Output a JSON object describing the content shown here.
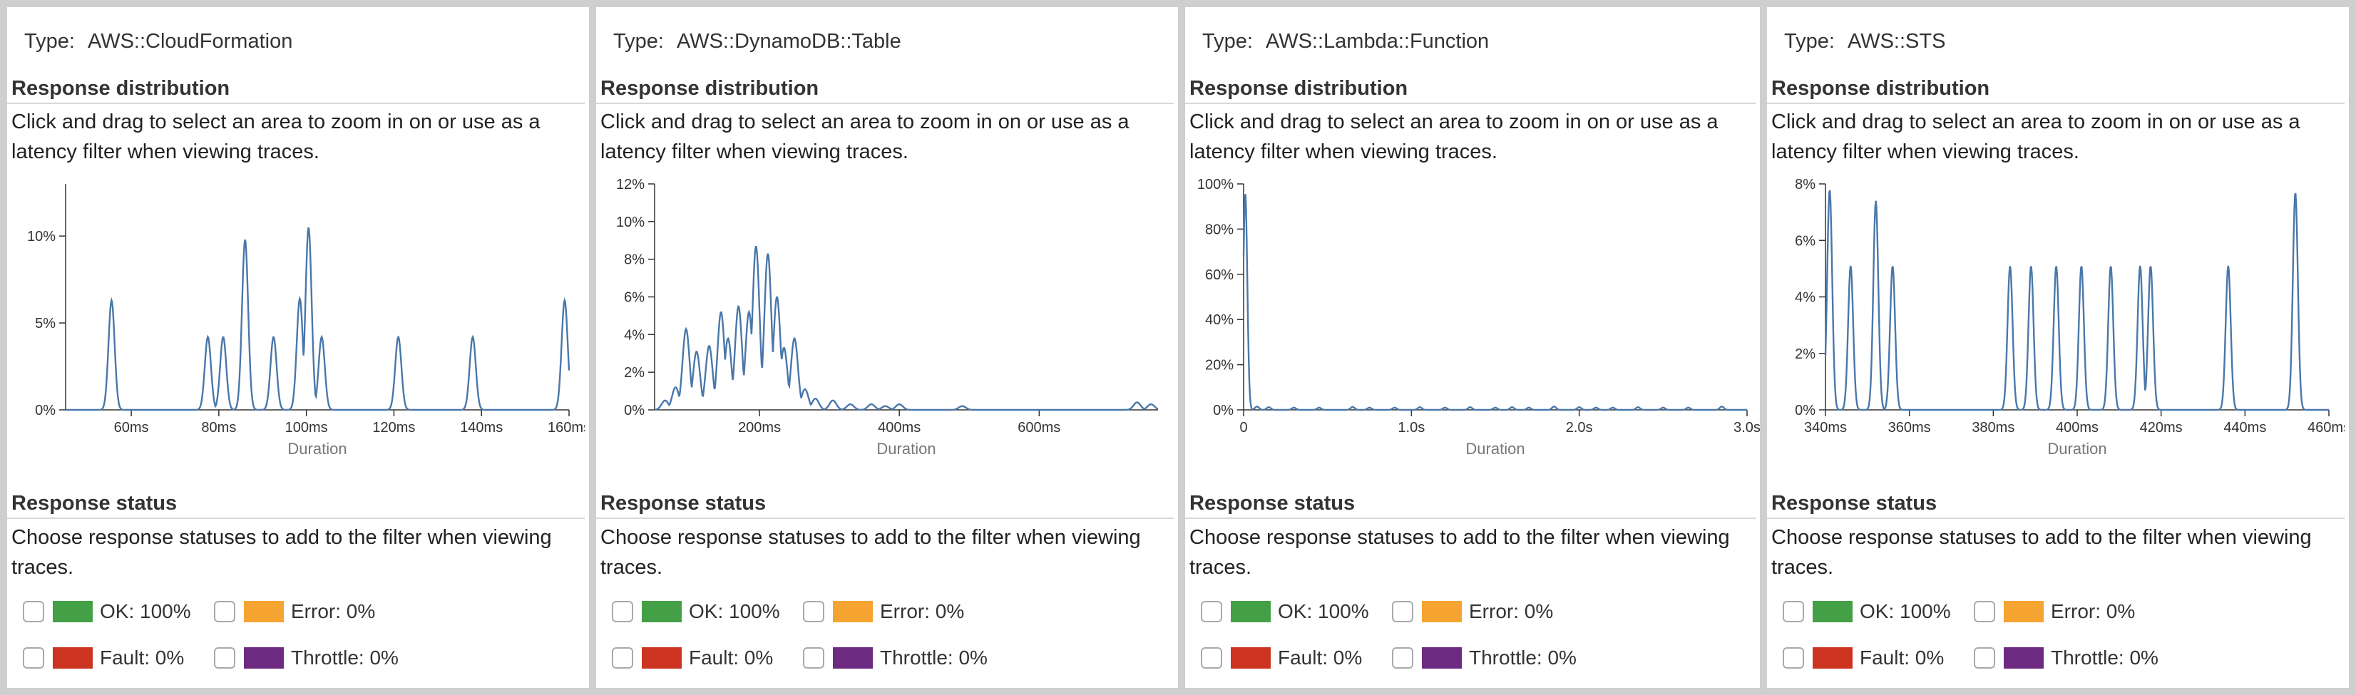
{
  "labels": {
    "type": "Type:",
    "response_distribution": "Response distribution",
    "distribution_help": "Click and drag to select an area to zoom in on or use as a latency filter when viewing traces.",
    "response_status": "Response status",
    "status_help": "Choose response statuses to add to the filter when viewing traces.",
    "duration": "Duration"
  },
  "status_colors": {
    "ok": "#43a047",
    "error": "#f5a431",
    "fault": "#cc3321",
    "throttle": "#6c2a80"
  },
  "line_color": "#4a77aa",
  "panels": [
    {
      "type_value": "AWS::CloudFormation",
      "statuses": {
        "ok": "OK: 100%",
        "error": "Error: 0%",
        "fault": "Fault: 0%",
        "throttle": "Throttle: 0%"
      },
      "chart_data": {
        "type": "line",
        "xlabel": "Duration",
        "x_unit": "ms",
        "xlim": [
          45,
          160
        ],
        "ylim": [
          0,
          13
        ],
        "x_ticks": [
          60,
          80,
          100,
          120,
          140,
          160
        ],
        "x_tick_labels": [
          "60ms",
          "80ms",
          "100ms",
          "120ms",
          "140ms",
          "160ms"
        ],
        "y_ticks": [
          0,
          5,
          10
        ],
        "y_tick_labels": [
          "0%",
          "5%",
          "10%"
        ],
        "peak_width": 0.7,
        "peaks": [
          [
            55.5,
            6.3
          ],
          [
            77.5,
            4.2
          ],
          [
            81,
            4.2
          ],
          [
            86,
            9.8
          ],
          [
            92.5,
            4.2
          ],
          [
            98.5,
            6.4
          ],
          [
            100.5,
            10.5
          ],
          [
            103.5,
            4.2
          ],
          [
            121,
            4.2
          ],
          [
            138,
            4.2
          ],
          [
            159,
            6.3
          ]
        ]
      }
    },
    {
      "type_value": "AWS::DynamoDB::Table",
      "statuses": {
        "ok": "OK: 100%",
        "error": "Error: 0%",
        "fault": "Fault: 0%",
        "throttle": "Throttle: 0%"
      },
      "chart_data": {
        "type": "line",
        "xlabel": "Duration",
        "x_unit": "ms",
        "xlim": [
          50,
          770
        ],
        "ylim": [
          0,
          12
        ],
        "x_ticks": [
          200,
          400,
          600
        ],
        "x_tick_labels": [
          "200ms",
          "400ms",
          "600ms"
        ],
        "y_ticks": [
          0,
          2,
          4,
          6,
          8,
          10,
          12
        ],
        "y_tick_labels": [
          "0%",
          "2%",
          "4%",
          "6%",
          "8%",
          "10%",
          "12%"
        ],
        "peak_width": 5,
        "peaks": [
          [
            65,
            0.5
          ],
          [
            80,
            1.2
          ],
          [
            95,
            4.3
          ],
          [
            110,
            3.1
          ],
          [
            128,
            3.4
          ],
          [
            145,
            5.2
          ],
          [
            155,
            3.8
          ],
          [
            170,
            5.5
          ],
          [
            185,
            5.2
          ],
          [
            195,
            8.7
          ],
          [
            212,
            8.3
          ],
          [
            225,
            6.0
          ],
          [
            235,
            3.3
          ],
          [
            250,
            3.8
          ],
          [
            265,
            1.1
          ],
          [
            280,
            0.6
          ],
          [
            305,
            0.5
          ],
          [
            330,
            0.3
          ],
          [
            360,
            0.3
          ],
          [
            380,
            0.2
          ],
          [
            400,
            0.3
          ],
          [
            490,
            0.2
          ],
          [
            740,
            0.4
          ],
          [
            760,
            0.3
          ]
        ]
      }
    },
    {
      "type_value": "AWS::Lambda::Function",
      "statuses": {
        "ok": "OK: 100%",
        "error": "Error: 0%",
        "fault": "Fault: 0%",
        "throttle": "Throttle: 0%"
      },
      "chart_data": {
        "type": "line",
        "xlabel": "Duration",
        "x_unit": "s",
        "xlim": [
          0,
          3.0
        ],
        "ylim": [
          0,
          100
        ],
        "x_ticks": [
          0,
          1.0,
          2.0,
          3.0
        ],
        "x_tick_labels": [
          "0",
          "1.0s",
          "2.0s",
          "3.0s"
        ],
        "y_ticks": [
          0,
          20,
          40,
          60,
          80,
          100
        ],
        "y_tick_labels": [
          "0%",
          "20%",
          "40%",
          "60%",
          "80%",
          "100%"
        ],
        "peak_width": 0.012,
        "peaks": [
          [
            0.01,
            96
          ],
          [
            0.08,
            1.5
          ],
          [
            0.15,
            1.2
          ],
          [
            0.3,
            1.0
          ],
          [
            0.45,
            1.0
          ],
          [
            0.65,
            1.3
          ],
          [
            0.75,
            1.0
          ],
          [
            0.9,
            1.0
          ],
          [
            1.05,
            1.2
          ],
          [
            1.2,
            1.0
          ],
          [
            1.35,
            1.2
          ],
          [
            1.5,
            1.0
          ],
          [
            1.6,
            1.2
          ],
          [
            1.7,
            1.0
          ],
          [
            1.85,
            1.5
          ],
          [
            2.0,
            1.2
          ],
          [
            2.1,
            1.0
          ],
          [
            2.2,
            1.0
          ],
          [
            2.35,
            1.2
          ],
          [
            2.5,
            1.0
          ],
          [
            2.65,
            1.0
          ],
          [
            2.85,
            1.5
          ]
        ]
      }
    },
    {
      "type_value": "AWS::STS",
      "statuses": {
        "ok": "OK: 100%",
        "error": "Error: 0%",
        "fault": "Fault: 0%",
        "throttle": "Throttle: 0%"
      },
      "chart_data": {
        "type": "line",
        "xlabel": "Duration",
        "x_unit": "ms",
        "xlim": [
          340,
          460
        ],
        "ylim": [
          0,
          8
        ],
        "x_ticks": [
          340,
          360,
          380,
          400,
          420,
          440,
          460
        ],
        "x_tick_labels": [
          "340ms",
          "360ms",
          "380ms",
          "400ms",
          "420ms",
          "440ms",
          "460ms"
        ],
        "y_ticks": [
          0,
          2,
          4,
          6,
          8
        ],
        "y_tick_labels": [
          "0%",
          "2%",
          "4%",
          "6%",
          "8%"
        ],
        "peak_width": 0.6,
        "peaks": [
          [
            341,
            7.8
          ],
          [
            346,
            5.1
          ],
          [
            352,
            7.4
          ],
          [
            356,
            5.1
          ],
          [
            384,
            5.1
          ],
          [
            389,
            5.1
          ],
          [
            395,
            5.1
          ],
          [
            401,
            5.1
          ],
          [
            408,
            5.1
          ],
          [
            415,
            5.1
          ],
          [
            417.5,
            5.1
          ],
          [
            436,
            5.1
          ],
          [
            452,
            7.7
          ]
        ]
      }
    }
  ]
}
